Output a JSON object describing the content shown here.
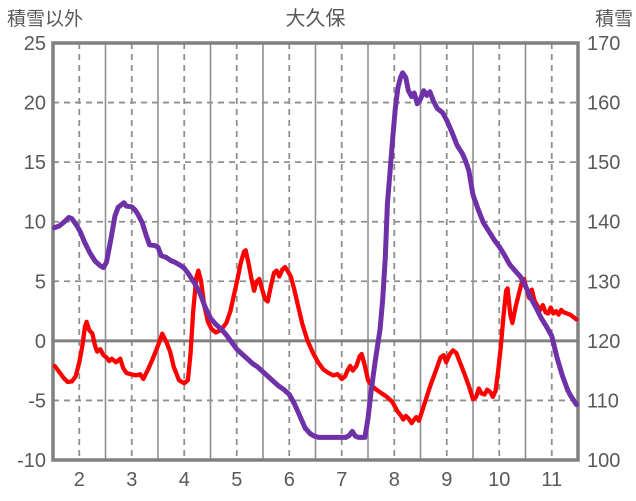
{
  "title": "大久保",
  "left_axis": {
    "label": "積雪以外",
    "ticks": [
      25,
      20,
      15,
      10,
      5,
      0,
      -5,
      -10
    ],
    "max": 25,
    "min": -10
  },
  "right_axis": {
    "label": "積雪",
    "ticks": [
      170,
      160,
      150,
      140,
      130,
      120,
      110,
      100
    ],
    "max": 170,
    "min": 100
  },
  "x_axis": {
    "ticks": [
      2,
      3,
      4,
      5,
      6,
      7,
      8,
      9,
      10,
      11
    ],
    "min": 1.5,
    "max": 11.5
  },
  "colors": {
    "red_series": "#FF0000",
    "purple_series": "#6F31A8",
    "grid": "#8F8F8F",
    "frame": "#808080",
    "text": "#595959",
    "background": "#FFFFFF"
  },
  "chart_data": {
    "type": "line",
    "title": "大久保",
    "legend": "none",
    "grid": "on",
    "x_range": [
      1.5,
      11.5
    ],
    "left_range": [
      -10,
      25
    ],
    "right_range": [
      100,
      170
    ],
    "series": [
      {
        "name": "積雪以外",
        "axis": "left",
        "color": "#FF0000",
        "points": [
          [
            1.53,
            -2.1
          ],
          [
            1.6,
            -2.5
          ],
          [
            1.7,
            -3.1
          ],
          [
            1.78,
            -3.45
          ],
          [
            1.86,
            -3.4
          ],
          [
            1.93,
            -3.0
          ],
          [
            2.0,
            -1.8
          ],
          [
            2.06,
            -0.4
          ],
          [
            2.11,
            1.2
          ],
          [
            2.14,
            1.6
          ],
          [
            2.19,
            0.9
          ],
          [
            2.25,
            0.6
          ],
          [
            2.3,
            -0.4
          ],
          [
            2.34,
            -0.9
          ],
          [
            2.4,
            -0.7
          ],
          [
            2.46,
            -1.2
          ],
          [
            2.52,
            -1.4
          ],
          [
            2.57,
            -1.7
          ],
          [
            2.62,
            -1.5
          ],
          [
            2.7,
            -1.8
          ],
          [
            2.78,
            -1.5
          ],
          [
            2.84,
            -2.3
          ],
          [
            2.9,
            -2.7
          ],
          [
            2.98,
            -2.8
          ],
          [
            3.08,
            -2.9
          ],
          [
            3.16,
            -2.8
          ],
          [
            3.22,
            -3.2
          ],
          [
            3.3,
            -2.5
          ],
          [
            3.4,
            -1.5
          ],
          [
            3.5,
            -0.4
          ],
          [
            3.58,
            0.6
          ],
          [
            3.66,
            -0.1
          ],
          [
            3.73,
            -0.9
          ],
          [
            3.8,
            -2.2
          ],
          [
            3.9,
            -3.3
          ],
          [
            4.0,
            -3.55
          ],
          [
            4.07,
            -3.3
          ],
          [
            4.12,
            -1.0
          ],
          [
            4.17,
            2.5
          ],
          [
            4.23,
            5.3
          ],
          [
            4.27,
            5.9
          ],
          [
            4.32,
            5.0
          ],
          [
            4.38,
            3.0
          ],
          [
            4.45,
            1.6
          ],
          [
            4.52,
            1.0
          ],
          [
            4.6,
            0.7
          ],
          [
            4.7,
            0.9
          ],
          [
            4.8,
            1.5
          ],
          [
            4.88,
            2.5
          ],
          [
            4.95,
            3.9
          ],
          [
            5.02,
            5.3
          ],
          [
            5.08,
            6.6
          ],
          [
            5.14,
            7.5
          ],
          [
            5.17,
            7.6
          ],
          [
            5.23,
            6.4
          ],
          [
            5.28,
            5.2
          ],
          [
            5.33,
            4.2
          ],
          [
            5.38,
            5.0
          ],
          [
            5.43,
            5.2
          ],
          [
            5.49,
            4.2
          ],
          [
            5.54,
            3.5
          ],
          [
            5.59,
            3.3
          ],
          [
            5.65,
            4.6
          ],
          [
            5.71,
            5.7
          ],
          [
            5.76,
            5.9
          ],
          [
            5.81,
            5.4
          ],
          [
            5.87,
            6.0
          ],
          [
            5.92,
            6.2
          ],
          [
            5.98,
            5.8
          ],
          [
            6.03,
            5.4
          ],
          [
            6.09,
            4.4
          ],
          [
            6.16,
            3.1
          ],
          [
            6.25,
            1.4
          ],
          [
            6.35,
            0.0
          ],
          [
            6.45,
            -1.0
          ],
          [
            6.55,
            -1.8
          ],
          [
            6.65,
            -2.4
          ],
          [
            6.75,
            -2.7
          ],
          [
            6.84,
            -2.9
          ],
          [
            6.92,
            -2.8
          ],
          [
            7.0,
            -3.2
          ],
          [
            7.06,
            -3.0
          ],
          [
            7.11,
            -2.5
          ],
          [
            7.16,
            -2.1
          ],
          [
            7.21,
            -2.5
          ],
          [
            7.28,
            -2.1
          ],
          [
            7.34,
            -1.3
          ],
          [
            7.38,
            -1.1
          ],
          [
            7.44,
            -2.1
          ],
          [
            7.5,
            -3.3
          ],
          [
            7.58,
            -3.8
          ],
          [
            7.66,
            -4.1
          ],
          [
            7.76,
            -4.4
          ],
          [
            7.86,
            -4.7
          ],
          [
            7.96,
            -5.1
          ],
          [
            8.06,
            -5.9
          ],
          [
            8.13,
            -6.3
          ],
          [
            8.17,
            -6.6
          ],
          [
            8.22,
            -6.3
          ],
          [
            8.27,
            -6.5
          ],
          [
            8.33,
            -6.9
          ],
          [
            8.38,
            -6.6
          ],
          [
            8.42,
            -6.4
          ],
          [
            8.47,
            -6.7
          ],
          [
            8.53,
            -5.9
          ],
          [
            8.61,
            -4.8
          ],
          [
            8.7,
            -3.6
          ],
          [
            8.8,
            -2.4
          ],
          [
            8.88,
            -1.4
          ],
          [
            8.94,
            -1.2
          ],
          [
            8.99,
            -1.8
          ],
          [
            9.06,
            -1.1
          ],
          [
            9.12,
            -0.8
          ],
          [
            9.18,
            -1.0
          ],
          [
            9.26,
            -1.9
          ],
          [
            9.34,
            -2.8
          ],
          [
            9.43,
            -3.9
          ],
          [
            9.5,
            -4.9
          ],
          [
            9.56,
            -4.7
          ],
          [
            9.61,
            -4.0
          ],
          [
            9.66,
            -4.4
          ],
          [
            9.72,
            -4.5
          ],
          [
            9.77,
            -4.1
          ],
          [
            9.83,
            -4.3
          ],
          [
            9.88,
            -4.7
          ],
          [
            9.93,
            -4.2
          ],
          [
            9.98,
            -2.5
          ],
          [
            10.03,
            -0.5
          ],
          [
            10.08,
            2.0
          ],
          [
            10.13,
            4.2
          ],
          [
            10.16,
            4.4
          ],
          [
            10.21,
            2.2
          ],
          [
            10.25,
            1.5
          ],
          [
            10.31,
            2.8
          ],
          [
            10.37,
            3.9
          ],
          [
            10.43,
            4.9
          ],
          [
            10.47,
            5.2
          ],
          [
            10.52,
            4.4
          ],
          [
            10.57,
            3.6
          ],
          [
            10.62,
            4.3
          ],
          [
            10.67,
            3.4
          ],
          [
            10.73,
            2.9
          ],
          [
            10.78,
            2.6
          ],
          [
            10.83,
            3.0
          ],
          [
            10.88,
            2.4
          ],
          [
            10.93,
            2.3
          ],
          [
            10.98,
            2.8
          ],
          [
            11.03,
            2.3
          ],
          [
            11.08,
            2.5
          ],
          [
            11.13,
            2.2
          ],
          [
            11.18,
            2.6
          ],
          [
            11.23,
            2.4
          ],
          [
            11.29,
            2.3
          ],
          [
            11.35,
            2.2
          ],
          [
            11.41,
            2.0
          ],
          [
            11.47,
            1.8
          ]
        ]
      },
      {
        "name": "積雪",
        "axis": "right",
        "color": "#6F31A8",
        "points": [
          [
            1.53,
            139.0
          ],
          [
            1.62,
            139.3
          ],
          [
            1.72,
            140.0
          ],
          [
            1.8,
            140.7
          ],
          [
            1.86,
            140.5
          ],
          [
            1.95,
            139.4
          ],
          [
            2.02,
            138.3
          ],
          [
            2.1,
            136.6
          ],
          [
            2.2,
            134.8
          ],
          [
            2.3,
            133.4
          ],
          [
            2.4,
            132.6
          ],
          [
            2.46,
            132.3
          ],
          [
            2.52,
            133.2
          ],
          [
            2.6,
            137.0
          ],
          [
            2.68,
            141.0
          ],
          [
            2.74,
            142.4
          ],
          [
            2.8,
            142.8
          ],
          [
            2.85,
            143.2
          ],
          [
            2.9,
            142.6
          ],
          [
            3.0,
            142.5
          ],
          [
            3.06,
            142.0
          ],
          [
            3.12,
            141.2
          ],
          [
            3.2,
            139.8
          ],
          [
            3.28,
            137.6
          ],
          [
            3.34,
            136.1
          ],
          [
            3.44,
            136.0
          ],
          [
            3.5,
            135.7
          ],
          [
            3.56,
            134.3
          ],
          [
            3.66,
            134.0
          ],
          [
            3.74,
            133.5
          ],
          [
            3.82,
            133.2
          ],
          [
            3.92,
            132.7
          ],
          [
            4.0,
            132.2
          ],
          [
            4.1,
            131.0
          ],
          [
            4.2,
            129.6
          ],
          [
            4.3,
            128.0
          ],
          [
            4.4,
            125.6
          ],
          [
            4.5,
            123.8
          ],
          [
            4.6,
            122.8
          ],
          [
            4.7,
            122.0
          ],
          [
            4.8,
            121.0
          ],
          [
            4.9,
            119.8
          ],
          [
            5.0,
            118.6
          ],
          [
            5.1,
            117.8
          ],
          [
            5.2,
            117.0
          ],
          [
            5.3,
            116.2
          ],
          [
            5.4,
            115.6
          ],
          [
            5.5,
            114.8
          ],
          [
            5.6,
            114.0
          ],
          [
            5.7,
            113.2
          ],
          [
            5.8,
            112.4
          ],
          [
            5.9,
            111.8
          ],
          [
            6.0,
            111.0
          ],
          [
            6.1,
            109.4
          ],
          [
            6.2,
            107.4
          ],
          [
            6.3,
            105.4
          ],
          [
            6.4,
            104.4
          ],
          [
            6.48,
            104.0
          ],
          [
            6.56,
            103.8
          ],
          [
            7.08,
            103.8
          ],
          [
            7.14,
            104.1
          ],
          [
            7.2,
            104.8
          ],
          [
            7.26,
            104.0
          ],
          [
            7.32,
            103.8
          ],
          [
            7.44,
            103.8
          ],
          [
            7.5,
            107.0
          ],
          [
            7.56,
            111.5
          ],
          [
            7.62,
            115.5
          ],
          [
            7.68,
            119.0
          ],
          [
            7.73,
            122.0
          ],
          [
            7.78,
            127.0
          ],
          [
            7.83,
            134.0
          ],
          [
            7.87,
            143.0
          ],
          [
            7.92,
            148.5
          ],
          [
            7.97,
            154.0
          ],
          [
            8.02,
            159.0
          ],
          [
            8.07,
            162.5
          ],
          [
            8.12,
            164.2
          ],
          [
            8.16,
            165.0
          ],
          [
            8.22,
            164.2
          ],
          [
            8.27,
            162.0
          ],
          [
            8.33,
            161.0
          ],
          [
            8.38,
            161.6
          ],
          [
            8.44,
            159.8
          ],
          [
            8.5,
            160.6
          ],
          [
            8.56,
            162.0
          ],
          [
            8.62,
            161.2
          ],
          [
            8.68,
            161.8
          ],
          [
            8.75,
            160.2
          ],
          [
            8.82,
            159.0
          ],
          [
            8.92,
            158.3
          ],
          [
            9.0,
            157.0
          ],
          [
            9.1,
            155.0
          ],
          [
            9.2,
            152.8
          ],
          [
            9.3,
            151.4
          ],
          [
            9.36,
            150.2
          ],
          [
            9.42,
            148.6
          ],
          [
            9.5,
            144.5
          ],
          [
            9.6,
            142.0
          ],
          [
            9.7,
            139.8
          ],
          [
            9.8,
            138.4
          ],
          [
            9.9,
            137.0
          ],
          [
            10.0,
            135.8
          ],
          [
            10.1,
            134.4
          ],
          [
            10.2,
            132.8
          ],
          [
            10.3,
            131.8
          ],
          [
            10.4,
            130.8
          ],
          [
            10.5,
            129.2
          ],
          [
            10.6,
            127.2
          ],
          [
            10.7,
            125.6
          ],
          [
            10.8,
            123.8
          ],
          [
            10.9,
            122.4
          ],
          [
            11.0,
            120.8
          ],
          [
            11.1,
            117.2
          ],
          [
            11.2,
            114.2
          ],
          [
            11.3,
            111.8
          ],
          [
            11.36,
            110.8
          ],
          [
            11.42,
            110.0
          ],
          [
            11.47,
            109.3
          ]
        ]
      }
    ]
  }
}
